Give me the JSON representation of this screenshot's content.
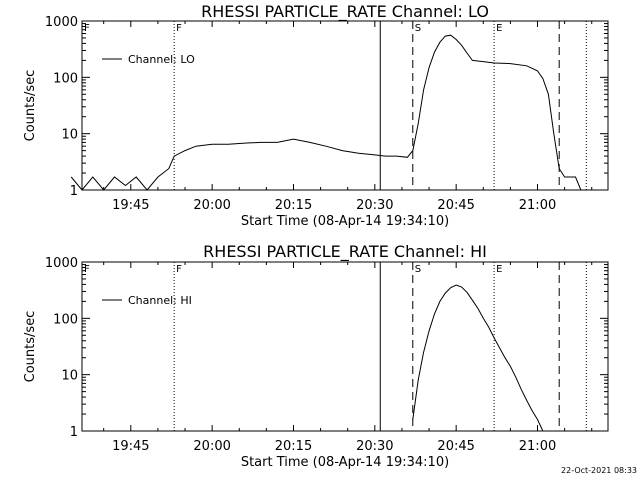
{
  "stamp": "22-Oct-2021 08:33",
  "chart_data": [
    {
      "type": "line",
      "title": "RHESSI PARTICLE_RATE Channel: LO",
      "xlabel": "Start Time (08-Apr-14 19:34:10)",
      "ylabel": "Counts/sec",
      "y_scale": "log",
      "ylim": [
        1,
        1000
      ],
      "xlim": [
        "19:36",
        "21:13"
      ],
      "x_ticks": [
        "19:45",
        "20:00",
        "20:15",
        "20:30",
        "20:45",
        "21:00"
      ],
      "y_ticks": [
        "1",
        "10",
        "100",
        "1000"
      ],
      "legend": "Channel: LO",
      "legend_position": "top-left",
      "markers": [
        {
          "label": "F",
          "time": "19:36",
          "style": "dotted"
        },
        {
          "label": "F",
          "time": "19:53",
          "style": "dotted"
        },
        {
          "label": "",
          "time": "20:31",
          "style": "solid"
        },
        {
          "label": "S",
          "time": "20:37",
          "style": "dashed"
        },
        {
          "label": "E",
          "time": "20:52",
          "style": "dotted"
        },
        {
          "label": "",
          "time": "21:04",
          "style": "dashed"
        },
        {
          "label": "",
          "time": "21:09",
          "style": "dotted"
        }
      ],
      "series": [
        {
          "name": "Channel: LO",
          "x": [
            "19:34",
            "19:36",
            "19:38",
            "19:40",
            "19:42",
            "19:44",
            "19:46",
            "19:48",
            "19:50",
            "19:52",
            "19:53",
            "19:55",
            "19:57",
            "20:00",
            "20:03",
            "20:06",
            "20:09",
            "20:12",
            "20:15",
            "20:18",
            "20:21",
            "20:24",
            "20:27",
            "20:30",
            "20:32",
            "20:34",
            "20:36",
            "20:37",
            "20:38",
            "20:39",
            "20:40",
            "20:41",
            "20:42",
            "20:43",
            "20:44",
            "20:45",
            "20:46",
            "20:47",
            "20:48",
            "20:50",
            "20:52",
            "20:55",
            "20:58",
            "21:00",
            "21:01",
            "21:02",
            "21:03",
            "21:04",
            "21:05",
            "21:07",
            "21:08",
            "21:09"
          ],
          "y": [
            1.7,
            1,
            1.7,
            1,
            1.7,
            1.2,
            1.7,
            1,
            1.7,
            2.4,
            4,
            5,
            6,
            6.5,
            6.5,
            6.8,
            7,
            7,
            8,
            7,
            6,
            5,
            4.5,
            4.2,
            4,
            4,
            3.8,
            5,
            15,
            60,
            150,
            280,
            420,
            540,
            560,
            470,
            370,
            270,
            200,
            190,
            180,
            175,
            160,
            130,
            95,
            50,
            10,
            2.4,
            1.7,
            1.7,
            1,
            1
          ]
        }
      ]
    },
    {
      "type": "line",
      "title": "RHESSI PARTICLE_RATE Channel: HI",
      "xlabel": "Start Time (08-Apr-14 19:34:10)",
      "ylabel": "Counts/sec",
      "y_scale": "log",
      "ylim": [
        1,
        1000
      ],
      "xlim": [
        "19:36",
        "21:13"
      ],
      "x_ticks": [
        "19:45",
        "20:00",
        "20:15",
        "20:30",
        "20:45",
        "21:00"
      ],
      "y_ticks": [
        "1",
        "10",
        "100",
        "1000"
      ],
      "legend": "Channel: HI",
      "legend_position": "top-left",
      "markers": [
        {
          "label": "F",
          "time": "19:36",
          "style": "dotted"
        },
        {
          "label": "F",
          "time": "19:53",
          "style": "dotted"
        },
        {
          "label": "",
          "time": "20:31",
          "style": "solid"
        },
        {
          "label": "S",
          "time": "20:37",
          "style": "dashed"
        },
        {
          "label": "E",
          "time": "20:52",
          "style": "dotted"
        },
        {
          "label": "",
          "time": "21:04",
          "style": "dashed"
        },
        {
          "label": "",
          "time": "21:09",
          "style": "dotted"
        }
      ],
      "series": [
        {
          "name": "Channel: HI",
          "x": [
            "20:37",
            "20:38",
            "20:39",
            "20:40",
            "20:41",
            "20:42",
            "20:43",
            "20:44",
            "20:45",
            "20:46",
            "20:47",
            "20:48",
            "20:49",
            "20:50",
            "20:51",
            "20:52",
            "20:53",
            "20:54",
            "20:55",
            "20:56",
            "20:57",
            "20:58",
            "20:59",
            "21:00",
            "21:01"
          ],
          "y": [
            1.6,
            8,
            25,
            60,
            120,
            200,
            280,
            350,
            390,
            360,
            290,
            210,
            150,
            100,
            70,
            45,
            30,
            20,
            14,
            9,
            5.5,
            3.5,
            2.3,
            1.6,
            1
          ]
        }
      ]
    }
  ]
}
